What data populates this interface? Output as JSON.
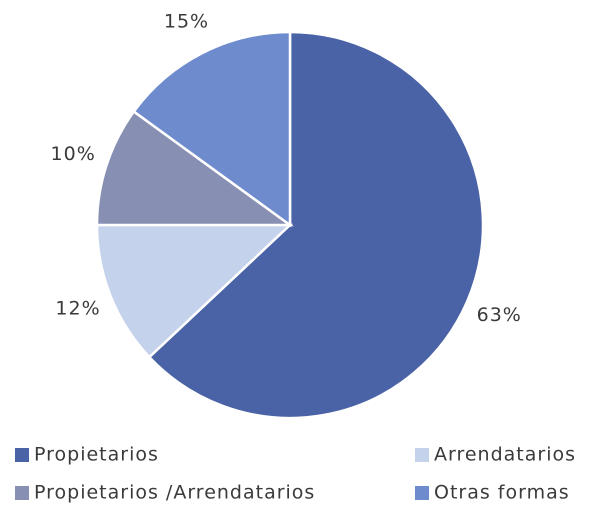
{
  "chart_data": {
    "type": "pie",
    "categories": [
      "Propietarios",
      "Arrendatarios",
      "Propietarios /Arrendatarios",
      "Otras formas"
    ],
    "values": [
      63,
      12,
      10,
      15
    ],
    "value_labels": [
      "63%",
      "12%",
      "10%",
      "15%"
    ],
    "colors": [
      "#4a62a6",
      "#c4d2ec",
      "#878fb2",
      "#6e8bcd"
    ],
    "legend": "bottom"
  }
}
